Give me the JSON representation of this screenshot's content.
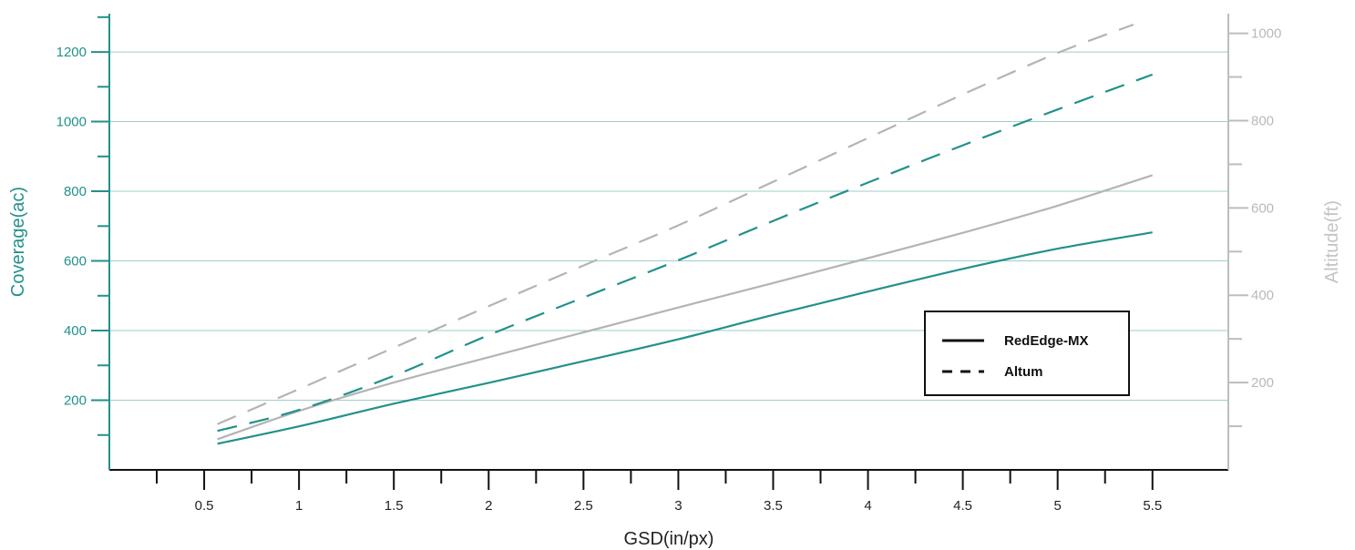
{
  "chart_data": {
    "type": "line",
    "xlabel": "GSD(in/px)",
    "ylabel_left": "Coverage(ac)",
    "ylabel_right": "Altitude(ft)",
    "xlim": [
      0,
      5.9
    ],
    "ylim_left": [
      0,
      1310
    ],
    "ylim_right": [
      0,
      1045
    ],
    "x_ticks": [
      "0.5",
      "1",
      "1.5",
      "2",
      "2.5",
      "3",
      "3.5",
      "4",
      "4.5",
      "5",
      "5.5"
    ],
    "y_left_ticks": [
      "200",
      "400",
      "600",
      "800",
      "1000",
      "1200"
    ],
    "y_right_ticks": [
      "200",
      "400",
      "600",
      "800",
      "1000"
    ],
    "grid": "horizontal",
    "legend_position": "lower-right",
    "legend": [
      {
        "label": "RedEdge-MX",
        "style": "solid"
      },
      {
        "label": "Altum",
        "style": "dashed"
      }
    ],
    "colors": {
      "coverage": "#22918a",
      "altitude": "#b4b4b4",
      "grid": "#9ecfca"
    },
    "series": [
      {
        "camera": "RedEdge-MX",
        "measure": "Coverage",
        "axis": "left",
        "style": "solid",
        "x": [
          0.57,
          1,
          1.5,
          2,
          2.5,
          3,
          3.5,
          4,
          4.5,
          5,
          5.5
        ],
        "y": [
          75,
          125,
          190,
          250,
          312,
          375,
          445,
          512,
          577,
          635,
          682
        ]
      },
      {
        "camera": "RedEdge-MX",
        "measure": "Altitude",
        "axis": "right",
        "style": "solid",
        "x": [
          0.57,
          1,
          1.5,
          2,
          2.5,
          3,
          3.5,
          4,
          4.5,
          5,
          5.5
        ],
        "y": [
          70,
          135,
          200,
          258,
          315,
          372,
          428,
          485,
          543,
          605,
          675
        ]
      },
      {
        "camera": "Altum",
        "measure": "Coverage",
        "axis": "left",
        "style": "dashed",
        "x": [
          0.57,
          1,
          1.5,
          2,
          2.5,
          3,
          3.5,
          4,
          4.5,
          5,
          5.5
        ],
        "y": [
          112,
          172,
          270,
          387,
          495,
          602,
          715,
          825,
          932,
          1035,
          1135
        ]
      },
      {
        "camera": "Altum",
        "measure": "Altitude",
        "axis": "right",
        "style": "dashed",
        "x": [
          0.57,
          1,
          1.5,
          2,
          2.5,
          3,
          3.5,
          4,
          4.5,
          5,
          5.4
        ],
        "y": [
          105,
          185,
          280,
          375,
          468,
          560,
          660,
          760,
          860,
          955,
          1020
        ]
      }
    ]
  }
}
